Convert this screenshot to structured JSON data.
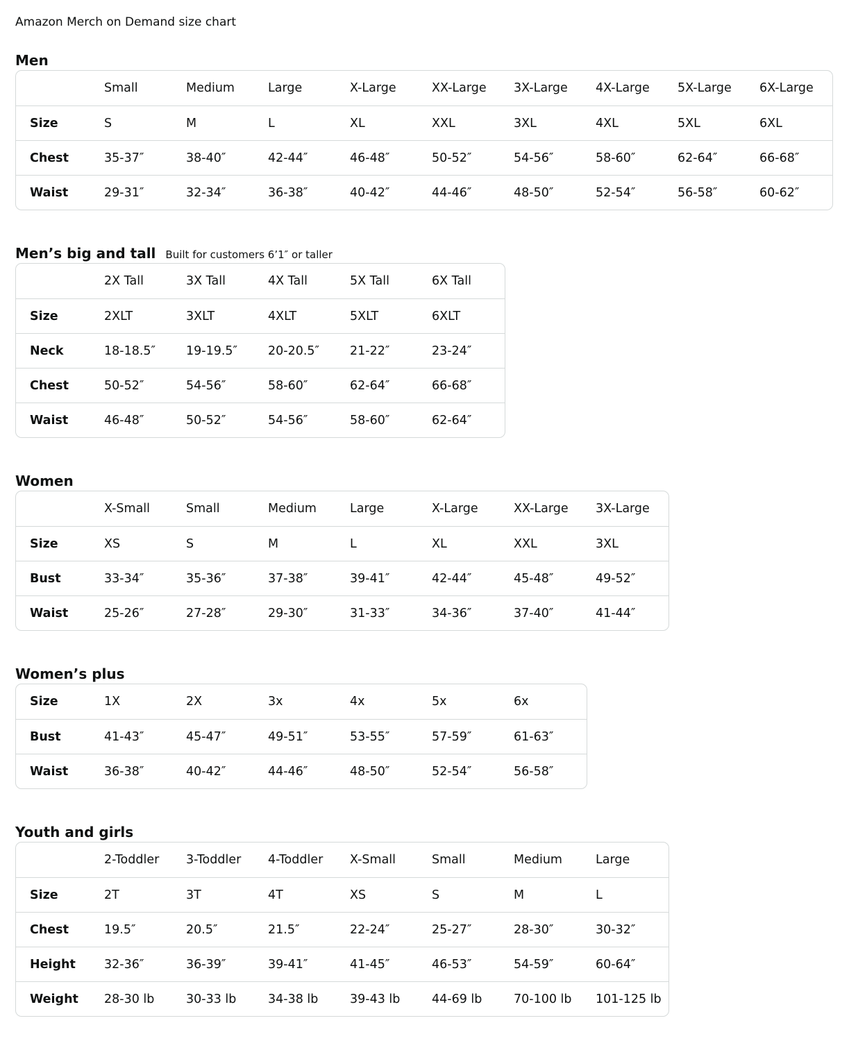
{
  "title": "Amazon Merch on Demand size chart",
  "sections": [
    {
      "heading": "Men",
      "subheading": "",
      "columns": [
        "",
        "Small",
        "Medium",
        "Large",
        "X-Large",
        "XX-Large",
        "3X-Large",
        "4X-Large",
        "5X-Large",
        "6X-Large"
      ],
      "rows": [
        [
          "Size",
          "S",
          "M",
          "L",
          "XL",
          "XXL",
          "3XL",
          "4XL",
          "5XL",
          "6XL"
        ],
        [
          "Chest",
          "35-37″",
          "38-40″",
          "42-44″",
          "46-48″",
          "50-52″",
          "54-56″",
          "58-60″",
          "62-64″",
          "66-68″"
        ],
        [
          "Waist",
          "29-31″",
          "32-34″",
          "36-38″",
          "40-42″",
          "44-46″",
          "48-50″",
          "52-54″",
          "56-58″",
          "60-62″"
        ]
      ]
    },
    {
      "heading": "Men’s big and tall",
      "subheading": "Built for customers 6’1″ or taller",
      "columns": [
        "",
        "2X Tall",
        "3X Tall",
        "4X Tall",
        "5X Tall",
        "6X Tall"
      ],
      "rows": [
        [
          "Size",
          "2XLT",
          "3XLT",
          "4XLT",
          "5XLT",
          "6XLT"
        ],
        [
          "Neck",
          "18-18.5″",
          "19-19.5″",
          "20-20.5″",
          "21-22″",
          "23-24″"
        ],
        [
          "Chest",
          "50-52″",
          "54-56″",
          "58-60″",
          "62-64″",
          "66-68″"
        ],
        [
          "Waist",
          "46-48″",
          "50-52″",
          "54-56″",
          "58-60″",
          "62-64″"
        ]
      ]
    },
    {
      "heading": "Women",
      "subheading": "",
      "columns": [
        "",
        "X-Small",
        "Small",
        "Medium",
        "Large",
        "X-Large",
        "XX-Large",
        "3X-Large"
      ],
      "rows": [
        [
          "Size",
          "XS",
          "S",
          "M",
          "L",
          "XL",
          "XXL",
          "3XL"
        ],
        [
          "Bust",
          "33-34″",
          "35-36″",
          "37-38″",
          "39-41″",
          "42-44″",
          "45-48″",
          "49-52″"
        ],
        [
          "Waist",
          "25-26″",
          "27-28″",
          "29-30″",
          "31-33″",
          "34-36″",
          "37-40″",
          "41-44″"
        ]
      ]
    },
    {
      "heading": "Women’s plus",
      "subheading": "",
      "columns": [],
      "rows": [
        [
          "Size",
          "1X",
          "2X",
          "3x",
          "4x",
          "5x",
          "6x"
        ],
        [
          "Bust",
          "41-43″",
          "45-47″",
          "49-51″",
          "53-55″",
          "57-59″",
          "61-63″"
        ],
        [
          "Waist",
          "36-38″",
          "40-42″",
          "44-46″",
          "48-50″",
          "52-54″",
          "56-58″"
        ]
      ]
    },
    {
      "heading": "Youth and girls",
      "subheading": "",
      "columns": [
        "",
        "2-Toddler",
        "3-Toddler",
        "4-Toddler",
        "X-Small",
        "Small",
        "Medium",
        "Large"
      ],
      "rows": [
        [
          "Size",
          "2T",
          "3T",
          "4T",
          "XS",
          "S",
          "M",
          "L"
        ],
        [
          "Chest",
          "19.5″",
          "20.5″",
          "21.5″",
          "22-24″",
          "25-27″",
          "28-30″",
          "30-32″"
        ],
        [
          "Height",
          "32-36″",
          "36-39″",
          "39-41″",
          "41-45″",
          "46-53″",
          "54-59″",
          "60-64″"
        ],
        [
          "Weight",
          "28-30 lb",
          "30-33 lb",
          "34-38 lb",
          "39-43 lb",
          "44-69 lb",
          "70-100 lb",
          "101-125 lb"
        ]
      ]
    }
  ]
}
